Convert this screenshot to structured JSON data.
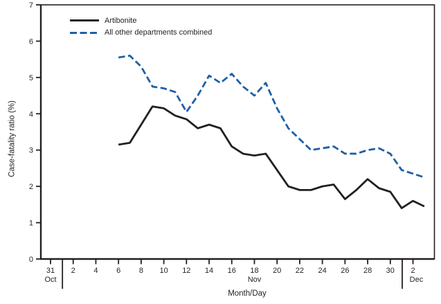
{
  "figure": {
    "background_color": "#ffffff",
    "ink_color": "#231f20"
  },
  "chart_data": {
    "type": "line",
    "title": "",
    "xlabel": "Month/Day",
    "ylabel": "Case-fatality ratio (%)",
    "ylim": [
      0,
      7
    ],
    "y_ticks": [
      0,
      1,
      2,
      3,
      4,
      5,
      6,
      7
    ],
    "grid": false,
    "legend_position": "top-left-inside",
    "x_tick_days": [
      0,
      2,
      4,
      6,
      8,
      10,
      12,
      14,
      16,
      18,
      20,
      22,
      24,
      26,
      28,
      30,
      32
    ],
    "x_tick_labels": [
      "31",
      "2",
      "4",
      "6",
      "8",
      "10",
      "12",
      "14",
      "16",
      "18",
      "20",
      "22",
      "24",
      "26",
      "28",
      "30",
      "2"
    ],
    "month_labels": [
      {
        "label": "Oct",
        "day": 0
      },
      {
        "label": "Nov",
        "day": 18
      },
      {
        "label": "Dec",
        "day": 32.3
      }
    ],
    "month_separator_days": [
      1.05,
      31.05
    ],
    "x": [
      6,
      7,
      8,
      9,
      10,
      11,
      12,
      13,
      14,
      15,
      16,
      17,
      18,
      19,
      20,
      21,
      22,
      23,
      24,
      25,
      26,
      27,
      28,
      29,
      30,
      31,
      32,
      33
    ],
    "x_dates": [
      "Nov 6",
      "Nov 7",
      "Nov 8",
      "Nov 9",
      "Nov 10",
      "Nov 11",
      "Nov 12",
      "Nov 13",
      "Nov 14",
      "Nov 15",
      "Nov 16",
      "Nov 17",
      "Nov 18",
      "Nov 19",
      "Nov 20",
      "Nov 21",
      "Nov 22",
      "Nov 23",
      "Nov 24",
      "Nov 25",
      "Nov 26",
      "Nov 27",
      "Nov 28",
      "Nov 29",
      "Nov 30",
      "Dec 1",
      "Dec 2",
      "Dec 3"
    ],
    "series": [
      {
        "name": "Artibonite",
        "style": "solid",
        "color": "#231f20",
        "values": [
          3.15,
          3.2,
          3.7,
          4.2,
          4.15,
          3.95,
          3.85,
          3.6,
          3.7,
          3.6,
          3.1,
          2.9,
          2.85,
          2.9,
          2.45,
          2.0,
          1.9,
          1.9,
          2.0,
          2.05,
          1.65,
          1.9,
          2.2,
          1.95,
          1.85,
          1.4,
          1.6,
          1.45
        ]
      },
      {
        "name": "All other departments combined",
        "style": "dashed",
        "color": "#1f5fa8",
        "values": [
          5.55,
          5.6,
          5.3,
          4.75,
          4.7,
          4.6,
          4.05,
          4.5,
          5.05,
          4.85,
          5.1,
          4.75,
          4.5,
          4.85,
          4.15,
          3.6,
          3.3,
          3.0,
          3.05,
          3.1,
          2.9,
          2.9,
          3.0,
          3.05,
          2.9,
          2.45,
          2.35,
          2.25
        ]
      }
    ]
  }
}
